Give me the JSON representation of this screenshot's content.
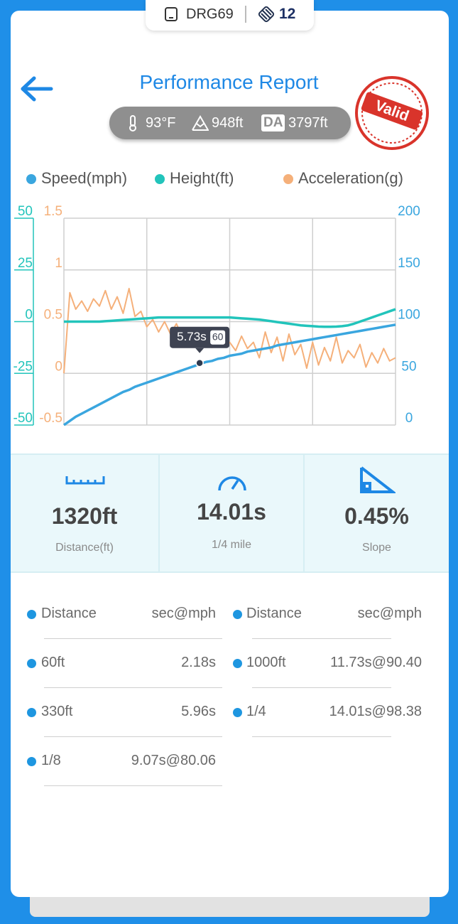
{
  "top_tab": {
    "device": "DRG69",
    "count": 12
  },
  "header": {
    "title": "Performance Report"
  },
  "conditions": {
    "temperature": "93°F",
    "elevation": "948ft",
    "da_badge": "DA",
    "density_altitude": "3797ft"
  },
  "stamp": "Valid",
  "chart_data": {
    "type": "line",
    "x": [
      0,
      0.25,
      0.5,
      0.75,
      1,
      1.25,
      1.5,
      1.75,
      2,
      2.25,
      2.5,
      2.75,
      3,
      3.25,
      3.5,
      3.75,
      4,
      4.25,
      4.5,
      4.75,
      5,
      5.25,
      5.5,
      5.75,
      6,
      6.25,
      6.5,
      6.75,
      7,
      7.25,
      7.5,
      7.75,
      8,
      8.25,
      8.5,
      8.75,
      9,
      9.25,
      9.5,
      9.75,
      10,
      10.25,
      10.5,
      10.75,
      11,
      11.25,
      11.5,
      11.75,
      12,
      12.25,
      12.5,
      12.75,
      13,
      13.25,
      13.5,
      13.75,
      14
    ],
    "xlim": [
      0,
      14
    ],
    "series": [
      {
        "name": "Speed(mph)",
        "color": "#3aa6df",
        "axis": "y2",
        "values": [
          0,
          4,
          8,
          11,
          14,
          17,
          20,
          23,
          26,
          29,
          32,
          34,
          37,
          39,
          41,
          43,
          45,
          47,
          49,
          51,
          53,
          55,
          57,
          59,
          61,
          62,
          64,
          65,
          67,
          68,
          69,
          71,
          72,
          73,
          74,
          75,
          77,
          78,
          79,
          80,
          81,
          82,
          83,
          84,
          85,
          86,
          87,
          88,
          89,
          90,
          91,
          92,
          93,
          94,
          95,
          96,
          97
        ]
      },
      {
        "name": "Height(ft)",
        "color": "#22c4bb",
        "values": [
          0,
          0,
          0,
          0,
          0,
          0,
          0,
          0.2,
          0.4,
          0.6,
          0.8,
          1,
          1.2,
          1.4,
          1.6,
          1.8,
          2,
          2,
          2,
          2,
          2,
          2,
          2,
          2,
          2,
          2,
          2,
          2,
          2,
          1.8,
          1.6,
          1.4,
          1.2,
          1,
          0.6,
          0.2,
          -0.2,
          -0.6,
          -1,
          -1.4,
          -1.8,
          -2,
          -2.2,
          -2.4,
          -2.5,
          -2.5,
          -2.4,
          -2.2,
          -1.8,
          -1,
          0,
          1,
          2,
          3,
          4,
          5,
          6
        ]
      },
      {
        "name": "Acceleration(g)",
        "color": "#f5b07a",
        "axis": "y3",
        "values": [
          0,
          0.78,
          0.62,
          0.7,
          0.6,
          0.72,
          0.65,
          0.8,
          0.62,
          0.74,
          0.58,
          0.82,
          0.55,
          0.6,
          0.45,
          0.52,
          0.4,
          0.5,
          0.38,
          0.48,
          0.35,
          0.42,
          0.3,
          0.38,
          0.32,
          0.25,
          0.35,
          0.28,
          0.3,
          0.22,
          0.36,
          0.24,
          0.3,
          0.15,
          0.4,
          0.2,
          0.35,
          0.12,
          0.38,
          0.18,
          0.28,
          0.05,
          0.3,
          0.08,
          0.25,
          0.12,
          0.35,
          0.1,
          0.22,
          0.15,
          0.28,
          0.06,
          0.2,
          0.1,
          0.24,
          0.12,
          0.15
        ]
      }
    ],
    "ylim": [
      -50,
      50
    ],
    "yticks": [
      -50,
      -25,
      0,
      25,
      50
    ],
    "y2lim": [
      0,
      200
    ],
    "y2ticks": [
      0,
      50,
      100,
      150,
      200
    ],
    "y3lim": [
      -0.5,
      1.5
    ],
    "y3ticks": [
      -0.5,
      0,
      0.5,
      1,
      1.5
    ],
    "grid": true,
    "highlight": {
      "x": 5.73,
      "x_label": "5.73s",
      "value": 60
    }
  },
  "stats": [
    {
      "value": "1320ft",
      "label": "Distance(ft)"
    },
    {
      "value": "14.01s",
      "label": "1/4 mile"
    },
    {
      "value": "0.45%",
      "label": "Slope"
    }
  ],
  "results": {
    "headers": [
      "Distance",
      "sec@mph",
      "Distance",
      "sec@mph"
    ],
    "left": [
      [
        "60ft",
        "2.18s"
      ],
      [
        "330ft",
        "5.96s"
      ],
      [
        "1/8",
        "9.07s@80.06"
      ]
    ],
    "right": [
      [
        "1000ft",
        "11.73s@90.40"
      ],
      [
        "1/4",
        "14.01s@98.38"
      ]
    ]
  }
}
